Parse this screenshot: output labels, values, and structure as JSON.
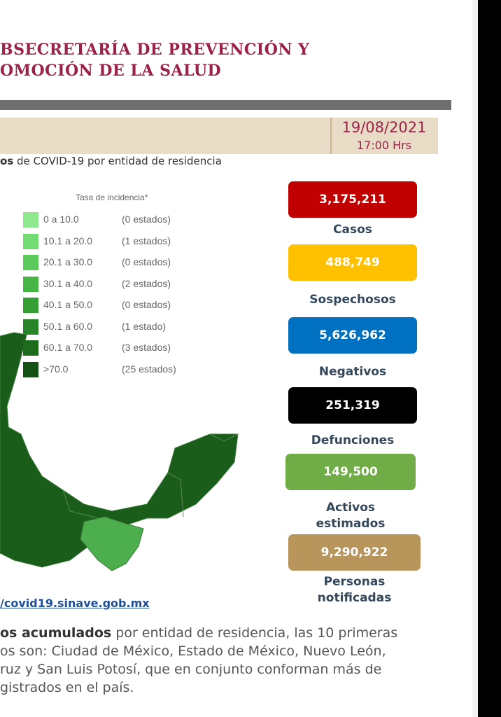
{
  "header": {
    "title_lines": [
      "BSECRETARÍA DE PREVENCIÓN Y",
      "OMOCIÓN DE LA SALUD"
    ],
    "date": "19/08/2021",
    "time": "17:00 Hrs"
  },
  "subtitle": {
    "bold": "os",
    "text": " de COVID-19 por entidad de residencia"
  },
  "legend": {
    "title": "Tasa de incidencia*",
    "items": [
      {
        "range": "0   a  10.0",
        "count": "(0 estados)",
        "color": "#8ee88e"
      },
      {
        "range": "10.1 a  20.0",
        "count": "(1 estados)",
        "color": "#72dc72"
      },
      {
        "range": "20.1 a  30.0",
        "count": "(0 estados)",
        "color": "#5acb5a"
      },
      {
        "range": "30.1 a  40.0",
        "count": "(2 estados)",
        "color": "#45b545"
      },
      {
        "range": "40.1 a  50.0",
        "count": "(0 estados)",
        "color": "#34a034"
      },
      {
        "range": "50.1 a  60.0",
        "count": "(1 estado)",
        "color": "#278527"
      },
      {
        "range": "60.1 a  70.0",
        "count": "(3 estados)",
        "color": "#1c6c1c"
      },
      {
        "range": ">70.0",
        "count": "(25 estados)",
        "color": "#135213"
      }
    ]
  },
  "stats": [
    {
      "value": "3,175,211",
      "label": [
        "Casos"
      ],
      "color": "#c00000"
    },
    {
      "value": "488,749",
      "label": [
        "Sospechosos"
      ],
      "color": "#ffc000"
    },
    {
      "value": "5,626,962",
      "label": [
        "Negativos"
      ],
      "color": "#0070c0"
    },
    {
      "value": "251,319",
      "label": [
        "Defunciones"
      ],
      "color": "#000000"
    },
    {
      "value": "149,500",
      "label": [
        "Activos",
        "estimados"
      ],
      "color": "#70ad47"
    },
    {
      "value": "9,290,922",
      "label": [
        "Personas",
        "notificadas"
      ],
      "color": "#b8955a"
    }
  ],
  "source_url": "/covid19.sinave.gob.mx",
  "paragraph": {
    "bold": "os acumulados",
    "lines": [
      " por entidad de residencia, las 10 primeras",
      "os son: Ciudad de México, Estado de México, Nuevo León,",
      "ruz y San Luis Potosí, que en conjunto conforman más de",
      "gistrados en el país."
    ]
  }
}
